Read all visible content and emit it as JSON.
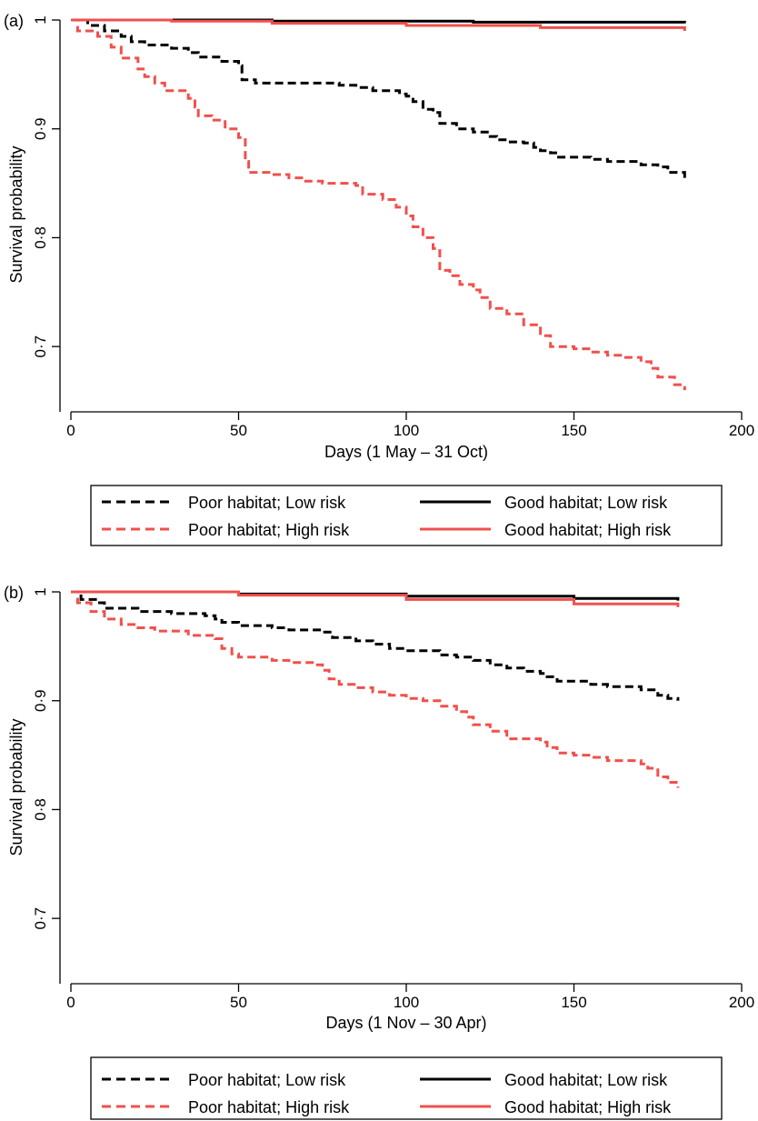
{
  "colors": {
    "poor_low": "#000000",
    "poor_high": "#f0504c",
    "good_low": "#000000",
    "good_high": "#f0504c"
  },
  "legend": {
    "poor_low": "Poor habitat; Low risk",
    "poor_high": "Poor habitat; High risk",
    "good_low": "Good habitat; Low risk",
    "good_high": "Good habitat; High risk"
  },
  "chart_data": [
    {
      "type": "line",
      "panel_label": "(a)",
      "xlabel": "Days (1 May – 31 Oct)",
      "ylabel": "Survival probability",
      "xlim": [
        0,
        200
      ],
      "ylim": [
        0.64,
        1.0
      ],
      "x_ticks": [
        0,
        50,
        100,
        150,
        200
      ],
      "x_tick_labels": [
        "0",
        "50",
        "100",
        "150",
        "200"
      ],
      "y_ticks": [
        0.7,
        0.8,
        0.9,
        1.0
      ],
      "y_tick_labels": [
        "0·7",
        "0·8",
        "0·9",
        "1"
      ],
      "legend_position": "below",
      "series": [
        {
          "name": "Poor habitat; Low risk",
          "style": "dashed",
          "color_key": "poor_low",
          "points": [
            [
              0,
              1.0
            ],
            [
              5,
              0.995
            ],
            [
              10,
              0.99
            ],
            [
              15,
              0.985
            ],
            [
              18,
              0.98
            ],
            [
              22,
              0.977
            ],
            [
              30,
              0.974
            ],
            [
              35,
              0.97
            ],
            [
              38,
              0.966
            ],
            [
              45,
              0.962
            ],
            [
              50,
              0.958
            ],
            [
              51,
              0.945
            ],
            [
              55,
              0.942
            ],
            [
              80,
              0.94
            ],
            [
              85,
              0.938
            ],
            [
              90,
              0.935
            ],
            [
              98,
              0.932
            ],
            [
              100,
              0.93
            ],
            [
              102,
              0.925
            ],
            [
              105,
              0.918
            ],
            [
              108,
              0.915
            ],
            [
              110,
              0.905
            ],
            [
              115,
              0.9
            ],
            [
              120,
              0.897
            ],
            [
              125,
              0.893
            ],
            [
              127,
              0.89
            ],
            [
              130,
              0.888
            ],
            [
              135,
              0.887
            ],
            [
              138,
              0.883
            ],
            [
              140,
              0.88
            ],
            [
              143,
              0.878
            ],
            [
              145,
              0.874
            ],
            [
              155,
              0.872
            ],
            [
              160,
              0.87
            ],
            [
              170,
              0.867
            ],
            [
              175,
              0.865
            ],
            [
              178,
              0.86
            ],
            [
              183,
              0.855
            ]
          ]
        },
        {
          "name": "Poor habitat; High risk",
          "style": "dashed",
          "color_key": "poor_high",
          "points": [
            [
              0,
              1.0
            ],
            [
              2,
              0.99
            ],
            [
              8,
              0.985
            ],
            [
              12,
              0.975
            ],
            [
              15,
              0.965
            ],
            [
              20,
              0.955
            ],
            [
              22,
              0.948
            ],
            [
              25,
              0.942
            ],
            [
              28,
              0.935
            ],
            [
              35,
              0.928
            ],
            [
              37,
              0.92
            ],
            [
              38,
              0.912
            ],
            [
              42,
              0.908
            ],
            [
              46,
              0.9
            ],
            [
              50,
              0.892
            ],
            [
              52,
              0.87
            ],
            [
              53,
              0.86
            ],
            [
              60,
              0.858
            ],
            [
              65,
              0.855
            ],
            [
              70,
              0.852
            ],
            [
              75,
              0.85
            ],
            [
              85,
              0.848
            ],
            [
              87,
              0.84
            ],
            [
              93,
              0.835
            ],
            [
              97,
              0.828
            ],
            [
              100,
              0.82
            ],
            [
              102,
              0.81
            ],
            [
              105,
              0.8
            ],
            [
              108,
              0.79
            ],
            [
              110,
              0.77
            ],
            [
              113,
              0.765
            ],
            [
              116,
              0.757
            ],
            [
              120,
              0.752
            ],
            [
              122,
              0.745
            ],
            [
              125,
              0.735
            ],
            [
              130,
              0.73
            ],
            [
              135,
              0.72
            ],
            [
              140,
              0.71
            ],
            [
              143,
              0.7
            ],
            [
              150,
              0.698
            ],
            [
              155,
              0.695
            ],
            [
              160,
              0.692
            ],
            [
              165,
              0.69
            ],
            [
              170,
              0.686
            ],
            [
              173,
              0.68
            ],
            [
              175,
              0.672
            ],
            [
              180,
              0.665
            ],
            [
              183,
              0.66
            ]
          ]
        },
        {
          "name": "Good habitat; Low risk",
          "style": "solid",
          "color_key": "good_low",
          "points": [
            [
              0,
              1.0
            ],
            [
              60,
              0.999
            ],
            [
              120,
              0.998
            ],
            [
              183,
              0.997
            ]
          ]
        },
        {
          "name": "Good habitat; High risk",
          "style": "solid",
          "color_key": "good_high",
          "points": [
            [
              0,
              1.0
            ],
            [
              30,
              0.999
            ],
            [
              60,
              0.997
            ],
            [
              100,
              0.995
            ],
            [
              140,
              0.993
            ],
            [
              183,
              0.99
            ]
          ]
        }
      ]
    },
    {
      "type": "line",
      "panel_label": "(b)",
      "xlabel": "Days (1 Nov – 30 Apr)",
      "ylabel": "Survival probability",
      "xlim": [
        0,
        200
      ],
      "ylim": [
        0.64,
        1.0
      ],
      "x_ticks": [
        0,
        50,
        100,
        150,
        200
      ],
      "x_tick_labels": [
        "0",
        "50",
        "100",
        "150",
        "200"
      ],
      "y_ticks": [
        0.7,
        0.8,
        0.9,
        1.0
      ],
      "y_tick_labels": [
        "0·7",
        "0·8",
        "0·9",
        "1"
      ],
      "legend_position": "below",
      "series": [
        {
          "name": "Poor habitat; Low risk",
          "style": "dashed",
          "color_key": "poor_low",
          "points": [
            [
              0,
              1.0
            ],
            [
              3,
              0.993
            ],
            [
              8,
              0.99
            ],
            [
              10,
              0.985
            ],
            [
              20,
              0.982
            ],
            [
              30,
              0.98
            ],
            [
              40,
              0.978
            ],
            [
              43,
              0.975
            ],
            [
              45,
              0.972
            ],
            [
              50,
              0.969
            ],
            [
              60,
              0.967
            ],
            [
              65,
              0.965
            ],
            [
              75,
              0.963
            ],
            [
              78,
              0.958
            ],
            [
              85,
              0.955
            ],
            [
              90,
              0.952
            ],
            [
              95,
              0.948
            ],
            [
              100,
              0.946
            ],
            [
              110,
              0.942
            ],
            [
              115,
              0.94
            ],
            [
              120,
              0.937
            ],
            [
              125,
              0.933
            ],
            [
              130,
              0.93
            ],
            [
              135,
              0.927
            ],
            [
              140,
              0.925
            ],
            [
              142,
              0.922
            ],
            [
              145,
              0.918
            ],
            [
              155,
              0.915
            ],
            [
              160,
              0.913
            ],
            [
              170,
              0.91
            ],
            [
              175,
              0.905
            ],
            [
              178,
              0.902
            ],
            [
              181,
              0.9
            ]
          ]
        },
        {
          "name": "Poor habitat; High risk",
          "style": "dashed",
          "color_key": "poor_high",
          "points": [
            [
              0,
              1.0
            ],
            [
              2,
              0.99
            ],
            [
              6,
              0.982
            ],
            [
              10,
              0.975
            ],
            [
              15,
              0.97
            ],
            [
              20,
              0.967
            ],
            [
              25,
              0.964
            ],
            [
              35,
              0.96
            ],
            [
              43,
              0.957
            ],
            [
              45,
              0.948
            ],
            [
              48,
              0.943
            ],
            [
              50,
              0.94
            ],
            [
              60,
              0.937
            ],
            [
              65,
              0.935
            ],
            [
              72,
              0.933
            ],
            [
              75,
              0.928
            ],
            [
              77,
              0.92
            ],
            [
              80,
              0.915
            ],
            [
              85,
              0.912
            ],
            [
              90,
              0.908
            ],
            [
              95,
              0.905
            ],
            [
              100,
              0.902
            ],
            [
              105,
              0.9
            ],
            [
              110,
              0.895
            ],
            [
              115,
              0.89
            ],
            [
              118,
              0.885
            ],
            [
              120,
              0.878
            ],
            [
              125,
              0.872
            ],
            [
              130,
              0.865
            ],
            [
              140,
              0.862
            ],
            [
              142,
              0.857
            ],
            [
              145,
              0.852
            ],
            [
              150,
              0.85
            ],
            [
              155,
              0.848
            ],
            [
              160,
              0.845
            ],
            [
              170,
              0.842
            ],
            [
              172,
              0.838
            ],
            [
              175,
              0.83
            ],
            [
              178,
              0.825
            ],
            [
              181,
              0.82
            ]
          ]
        },
        {
          "name": "Good habitat; Low risk",
          "style": "solid",
          "color_key": "good_low",
          "points": [
            [
              0,
              1.0
            ],
            [
              50,
              0.998
            ],
            [
              100,
              0.996
            ],
            [
              150,
              0.994
            ],
            [
              181,
              0.992
            ]
          ]
        },
        {
          "name": "Good habitat; High risk",
          "style": "solid",
          "color_key": "good_high",
          "points": [
            [
              0,
              1.0
            ],
            [
              50,
              0.997
            ],
            [
              100,
              0.993
            ],
            [
              150,
              0.989
            ],
            [
              181,
              0.986
            ]
          ]
        }
      ]
    }
  ]
}
